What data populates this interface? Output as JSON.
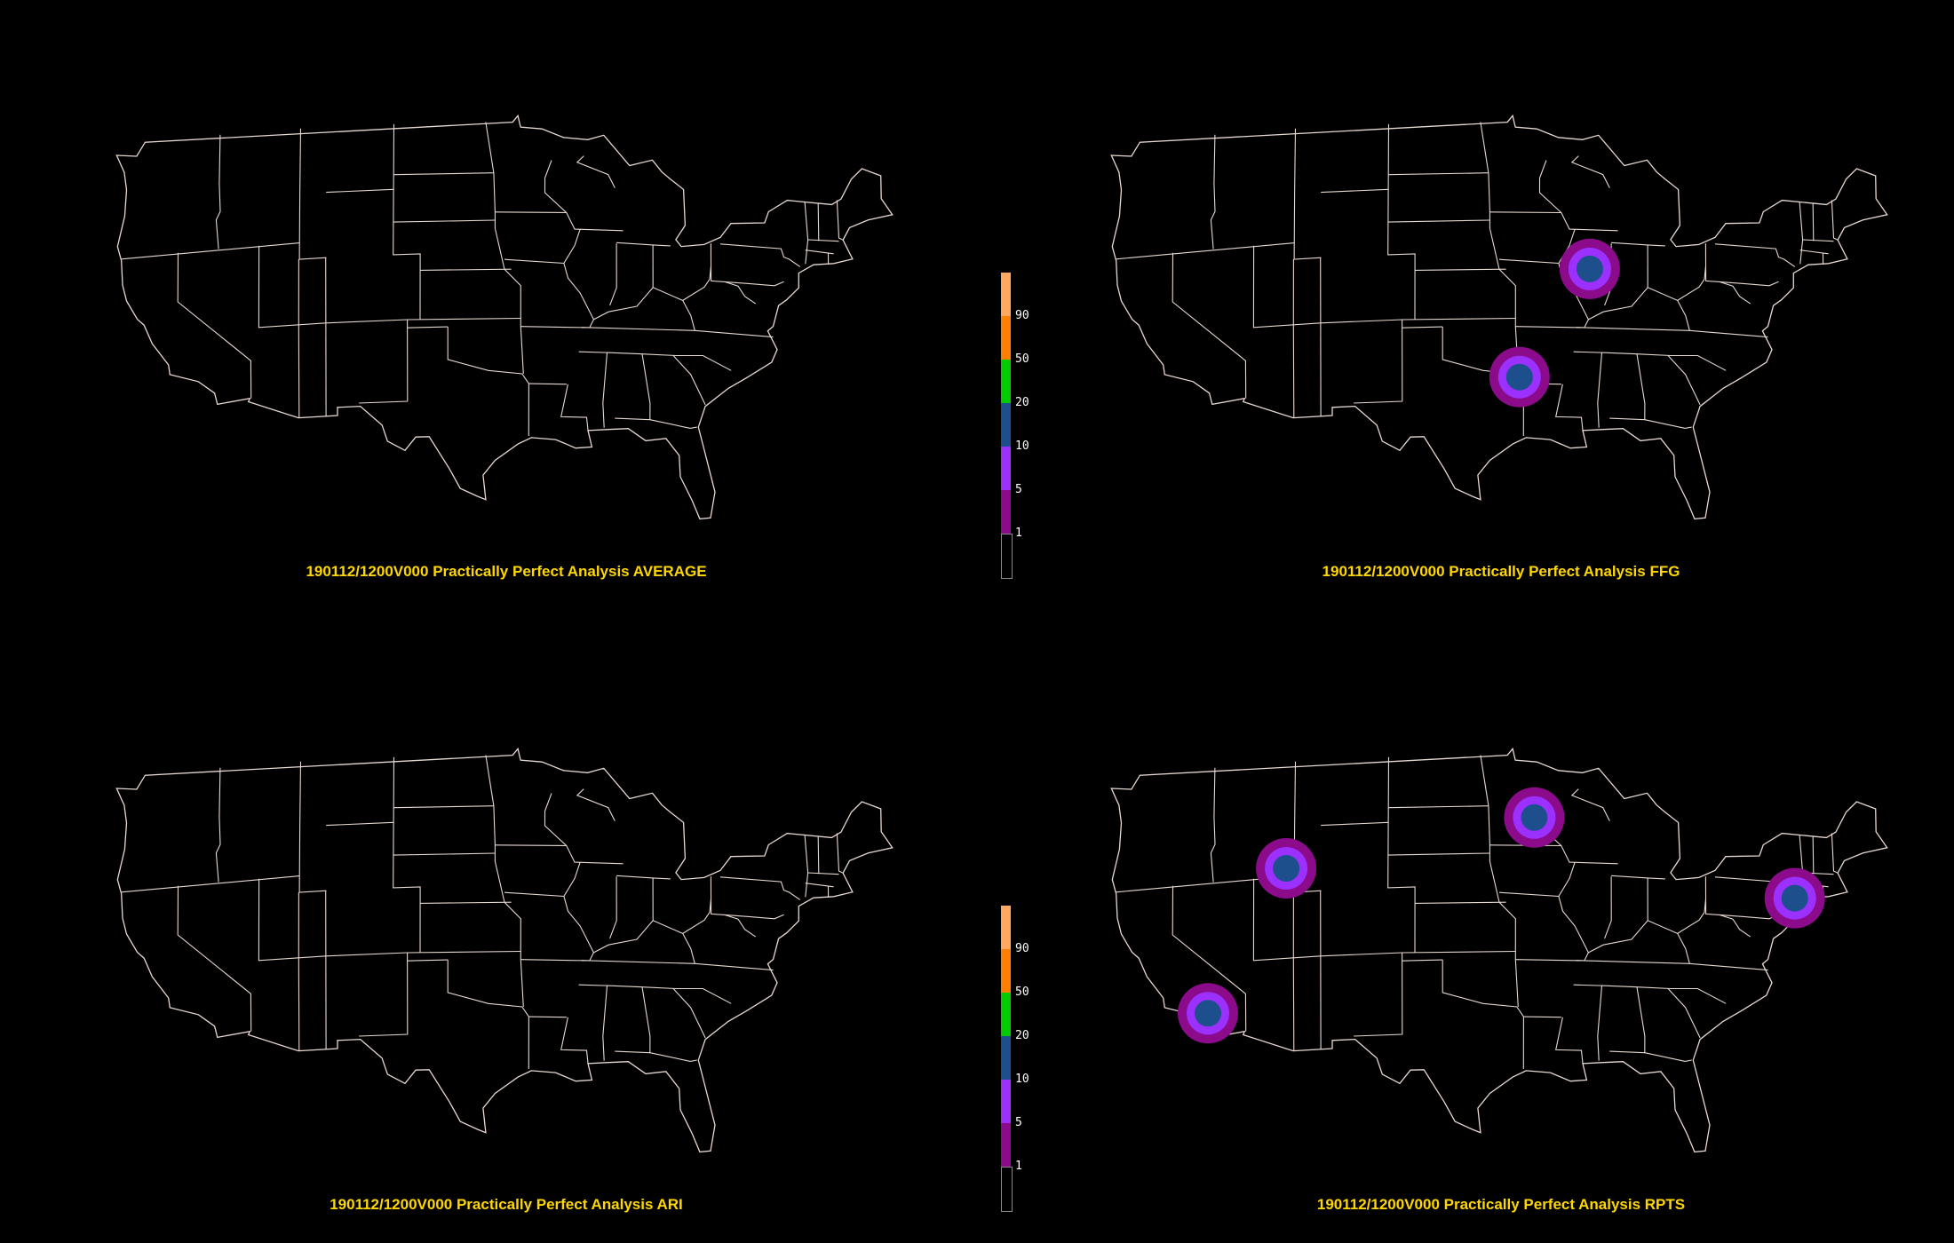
{
  "colors": {
    "background": "#000000",
    "border": "#e8d8d2",
    "caption": "#ffd700"
  },
  "panels": [
    {
      "id": "average",
      "caption": "190112/1200V000 Practically Perfect Analysis AVERAGE",
      "hotspots": []
    },
    {
      "id": "ffg",
      "caption": "190112/1200V000 Practically Perfect Analysis FFG",
      "hotspots": [
        {
          "name": "illinois",
          "lon": -89.1,
          "lat": 40.1
        },
        {
          "name": "arkansas-texas",
          "lon": -94.3,
          "lat": 33.4
        }
      ]
    },
    {
      "id": "ari",
      "caption": "190112/1200V000 Practically Perfect Analysis ARI",
      "hotspots": []
    },
    {
      "id": "rpts",
      "caption": "190112/1200V000 Practically Perfect Analysis RPTS",
      "hotspots": [
        {
          "name": "southern-california",
          "lon": -117.4,
          "lat": 34.0
        },
        {
          "name": "idaho-utah",
          "lon": -111.6,
          "lat": 42.5
        },
        {
          "name": "minnesota",
          "lon": -93.2,
          "lat": 45.2
        },
        {
          "name": "new-york",
          "lon": -73.9,
          "lat": 41.1
        }
      ]
    }
  ],
  "colorbar": {
    "segments": [
      {
        "color": "#000000"
      },
      {
        "color": "#8b0b8b"
      },
      {
        "color": "#9b30ff"
      },
      {
        "color": "#1c4f8c"
      },
      {
        "color": "#00cc00"
      },
      {
        "color": "#ff8000"
      },
      {
        "color": "#ffa860"
      }
    ],
    "labels": [
      "1",
      "5",
      "10",
      "20",
      "50",
      "90"
    ]
  },
  "hotspot_rings": [
    "#8b0b8b",
    "#9b30ff",
    "#1c4f8c"
  ]
}
